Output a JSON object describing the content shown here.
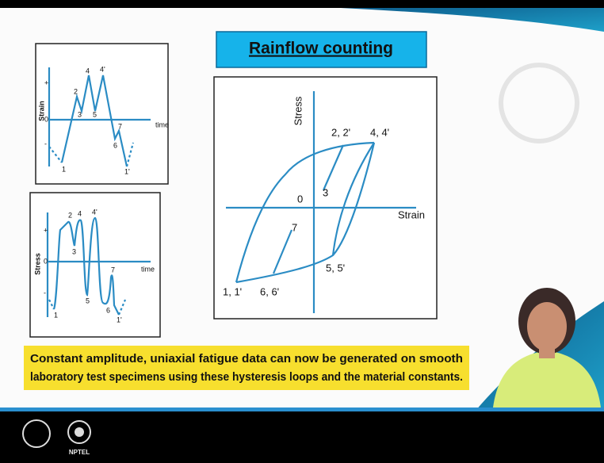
{
  "header": {
    "title": "Rainflow counting"
  },
  "strain_history": {
    "y_label": "Strain",
    "x_label": "time",
    "signs": [
      "+",
      "0",
      "-"
    ],
    "points": [
      "1",
      "2",
      "3",
      "4",
      "5",
      "4'",
      "7",
      "6",
      "1'"
    ]
  },
  "stress_history": {
    "y_label": "Stress",
    "x_label": "time",
    "signs": [
      "+",
      "0",
      "-"
    ],
    "points": [
      "1",
      "2",
      "3",
      "4",
      "5",
      "4'",
      "7",
      "6",
      "1'"
    ]
  },
  "hysteresis": {
    "y_label": "Stress",
    "x_label": "Strain",
    "origin": "0",
    "points": [
      "2, 2'",
      "4, 4'",
      "3",
      "7",
      "1, 1'",
      "6, 6'",
      "5, 5'"
    ]
  },
  "caption": [
    "Constant amplitude, uniaxial fatigue data can now be generated on smooth",
    "laboratory test specimens using these hysteresis loops and  the material constants."
  ],
  "footer": {
    "logo": "NPTEL"
  }
}
